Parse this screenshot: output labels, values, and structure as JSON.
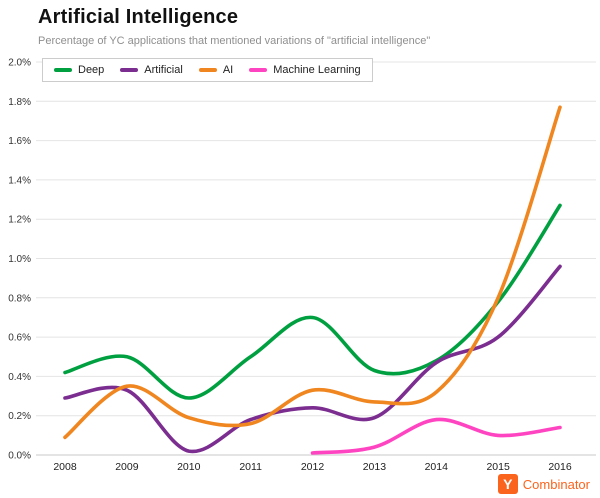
{
  "chart_data": {
    "type": "line",
    "title": "Artificial Intelligence",
    "subtitle": "Percentage of YC applications that mentioned variations of \"artificial intelligence\"",
    "x": [
      2008,
      2009,
      2010,
      2011,
      2012,
      2013,
      2014,
      2015,
      2016
    ],
    "xlabel": "",
    "ylabel": "",
    "ylim": [
      0,
      2.0
    ],
    "ytick_step": 0.2,
    "ytick_format": "percent_one_decimal",
    "grid": "horizontal",
    "legend_position": "top-left",
    "series": [
      {
        "name": "Deep",
        "color": "#00a041",
        "values": [
          0.42,
          0.5,
          0.29,
          0.5,
          0.7,
          0.43,
          0.48,
          0.78,
          1.27
        ]
      },
      {
        "name": "Artificial",
        "color": "#7b2d90",
        "values": [
          0.29,
          0.33,
          0.02,
          0.18,
          0.24,
          0.19,
          0.47,
          0.6,
          0.96
        ]
      },
      {
        "name": "AI",
        "color": "#f0861f",
        "values": [
          0.09,
          0.35,
          0.19,
          0.16,
          0.33,
          0.27,
          0.32,
          0.8,
          1.77
        ]
      },
      {
        "name": "Machine Learning",
        "color": "#ff44c2",
        "values": [
          null,
          null,
          null,
          null,
          0.01,
          0.04,
          0.18,
          0.1,
          0.14
        ]
      }
    ]
  },
  "logo": {
    "icon_letter": "Y",
    "text": "Combinator",
    "color": "#fb641d"
  }
}
